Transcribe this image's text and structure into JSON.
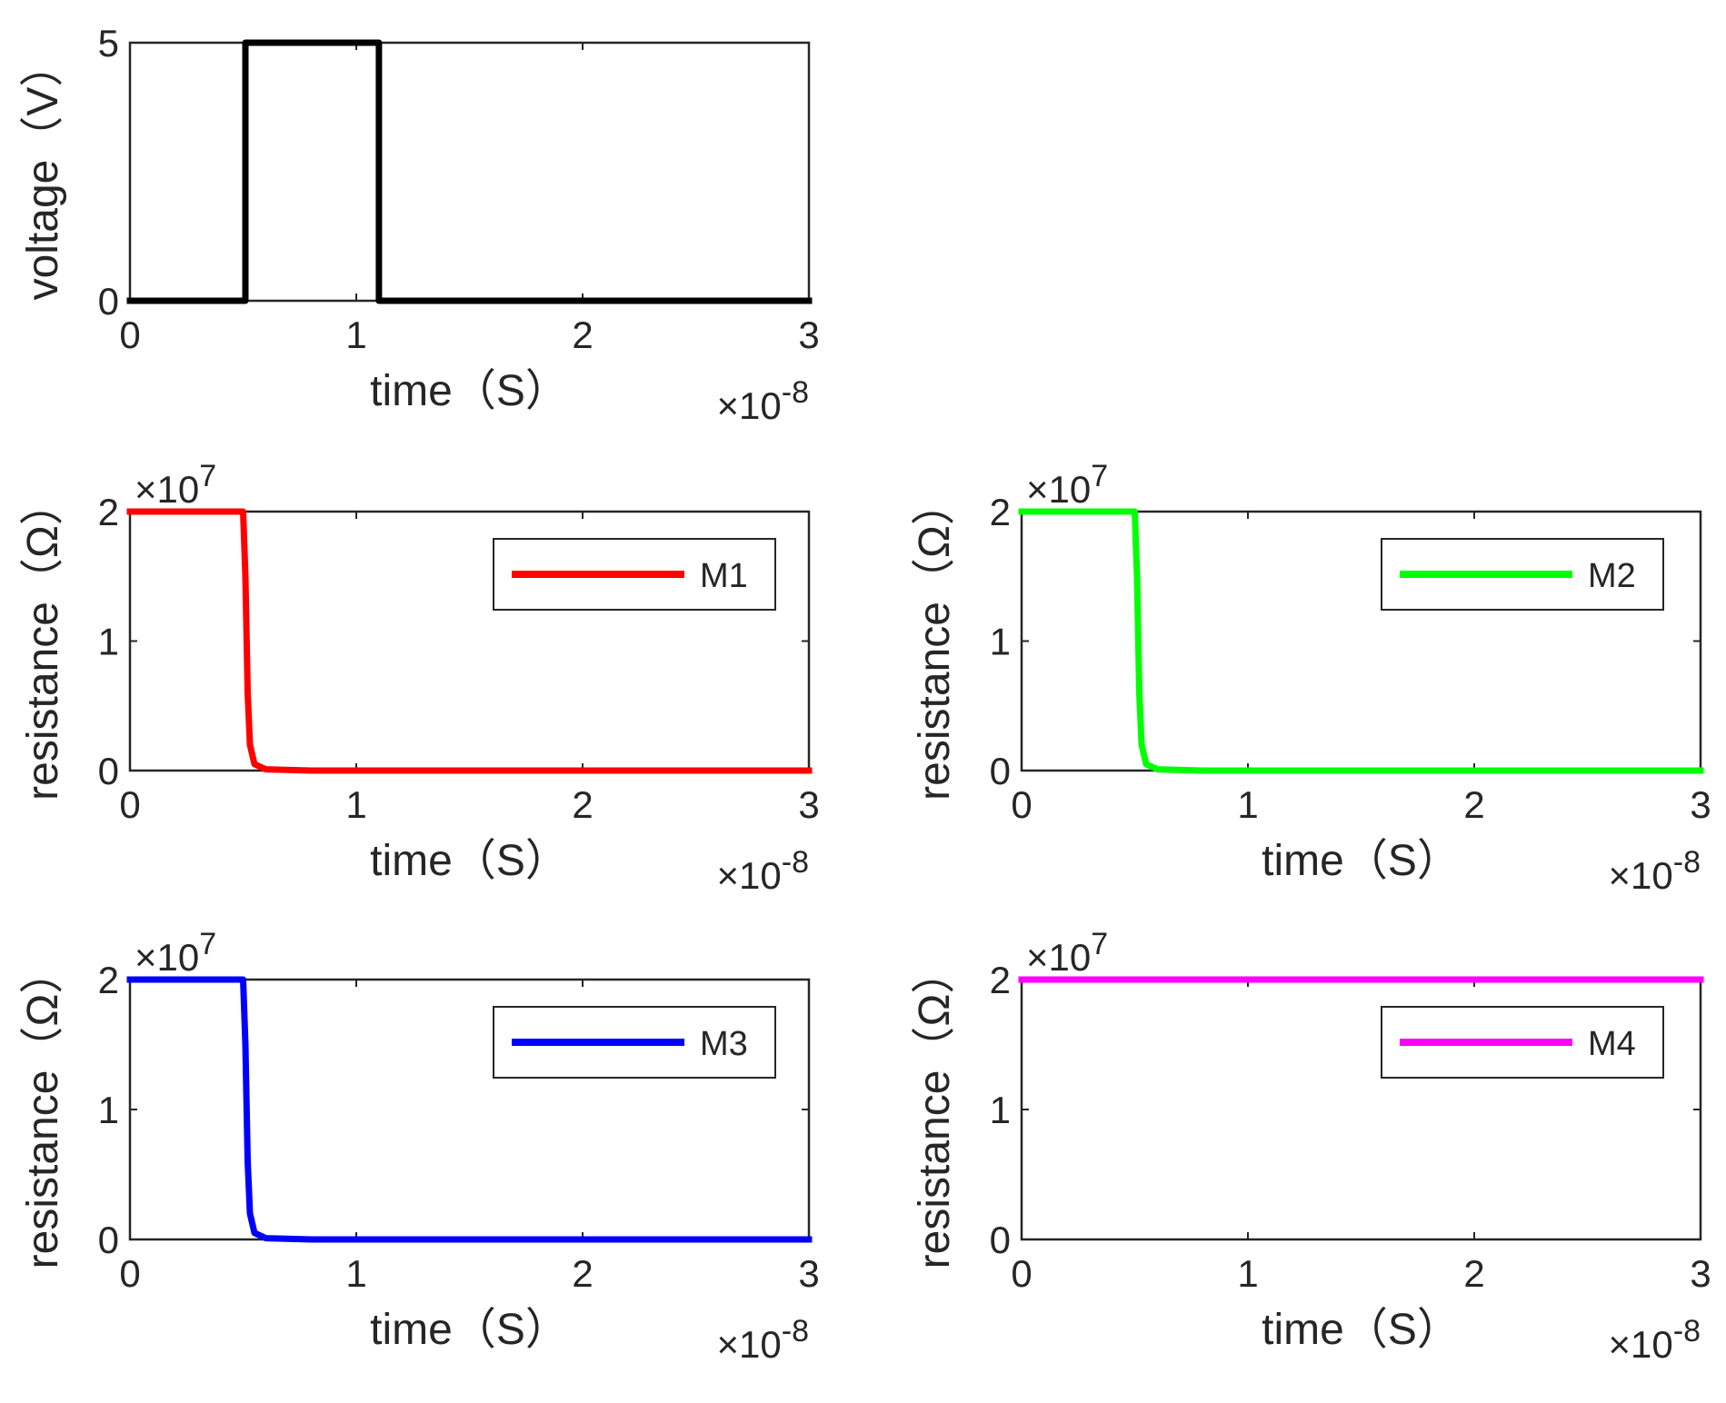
{
  "chart_data": [
    {
      "id": "voltage",
      "type": "line",
      "xlabel": "time（S）",
      "ylabel": "voltage（V）",
      "xlim": [
        0,
        3
      ],
      "ylim": [
        0,
        5
      ],
      "x_ticks": [
        "0",
        "1",
        "2",
        "3"
      ],
      "y_ticks": [
        "0",
        "5"
      ],
      "y_tick_values": [
        0,
        5
      ],
      "x_multiplier": "×10",
      "x_exponent": "-8",
      "y_multiplier": "",
      "y_exponent": "",
      "legend": "",
      "series": [
        {
          "name": "voltage",
          "color": "#000000",
          "x": [
            0,
            0.51,
            0.51,
            1.1,
            1.1,
            3
          ],
          "y": [
            0,
            0,
            5,
            5,
            0,
            0
          ]
        }
      ]
    },
    {
      "id": "m1",
      "type": "line",
      "xlabel": "time（S）",
      "ylabel": "resistance（Ω）",
      "xlim": [
        0,
        3
      ],
      "ylim": [
        0,
        2
      ],
      "x_ticks": [
        "0",
        "1",
        "2",
        "3"
      ],
      "y_ticks": [
        "0",
        "1",
        "2"
      ],
      "y_tick_values": [
        0,
        1,
        2
      ],
      "x_multiplier": "×10",
      "x_exponent": "-8",
      "y_multiplier": "×10",
      "y_exponent": "7",
      "legend": "M1",
      "series": [
        {
          "name": "M1",
          "color": "#ff0000",
          "x": [
            0,
            0.5,
            0.51,
            0.52,
            0.53,
            0.55,
            0.6,
            0.8,
            3
          ],
          "y": [
            2,
            2,
            1.5,
            0.6,
            0.2,
            0.05,
            0.01,
            0,
            0
          ]
        }
      ]
    },
    {
      "id": "m2",
      "type": "line",
      "xlabel": "time（S）",
      "ylabel": "resistance（Ω）",
      "xlim": [
        0,
        3
      ],
      "ylim": [
        0,
        2
      ],
      "x_ticks": [
        "0",
        "1",
        "2",
        "3"
      ],
      "y_ticks": [
        "0",
        "1",
        "2"
      ],
      "y_tick_values": [
        0,
        1,
        2
      ],
      "x_multiplier": "×10",
      "x_exponent": "-8",
      "y_multiplier": "×10",
      "y_exponent": "7",
      "legend": "M2",
      "series": [
        {
          "name": "M2",
          "color": "#00ff00",
          "x": [
            0,
            0.5,
            0.51,
            0.52,
            0.53,
            0.55,
            0.6,
            0.8,
            3
          ],
          "y": [
            2,
            2,
            1.5,
            0.6,
            0.2,
            0.05,
            0.01,
            0,
            0
          ]
        }
      ]
    },
    {
      "id": "m3",
      "type": "line",
      "xlabel": "time（S）",
      "ylabel": "resistance（Ω）",
      "xlim": [
        0,
        3
      ],
      "ylim": [
        0,
        2
      ],
      "x_ticks": [
        "0",
        "1",
        "2",
        "3"
      ],
      "y_ticks": [
        "0",
        "1",
        "2"
      ],
      "y_tick_values": [
        0,
        1,
        2
      ],
      "x_multiplier": "×10",
      "x_exponent": "-8",
      "y_multiplier": "×10",
      "y_exponent": "7",
      "legend": "M3",
      "series": [
        {
          "name": "M3",
          "color": "#0000ff",
          "x": [
            0,
            0.5,
            0.51,
            0.52,
            0.53,
            0.55,
            0.6,
            0.8,
            3
          ],
          "y": [
            2,
            2,
            1.5,
            0.6,
            0.2,
            0.05,
            0.01,
            0,
            0
          ]
        }
      ]
    },
    {
      "id": "m4",
      "type": "line",
      "xlabel": "time（S）",
      "ylabel": "resistance（Ω）",
      "xlim": [
        0,
        3
      ],
      "ylim": [
        0,
        2
      ],
      "x_ticks": [
        "0",
        "1",
        "2",
        "3"
      ],
      "y_ticks": [
        "0",
        "1",
        "2"
      ],
      "y_tick_values": [
        0,
        1,
        2
      ],
      "x_multiplier": "×10",
      "x_exponent": "-8",
      "y_multiplier": "×10",
      "y_exponent": "7",
      "legend": "M4",
      "series": [
        {
          "name": "M4",
          "color": "#ff00ff",
          "x": [
            0,
            3
          ],
          "y": [
            2,
            2
          ]
        }
      ]
    }
  ]
}
